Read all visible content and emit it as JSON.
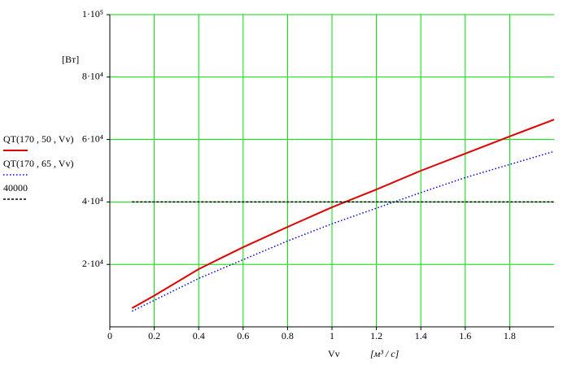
{
  "chart_data": {
    "type": "line",
    "y_label": "[Вт]",
    "x_label": "Vv",
    "x_unit": "[м³ / c]",
    "xlim": [
      0,
      2
    ],
    "xticks": [
      0,
      0.2,
      0.4,
      0.6,
      0.8,
      1,
      1.2,
      1.4,
      1.6,
      1.8
    ],
    "ylim": [
      0,
      100000
    ],
    "yticks": [
      {
        "value": 20000,
        "label": "2·10⁴"
      },
      {
        "value": 40000,
        "label": "4·10⁴"
      },
      {
        "value": 60000,
        "label": "6·10⁴"
      },
      {
        "value": 80000,
        "label": "8·10⁴"
      },
      {
        "value": 100000,
        "label": "1·10⁵"
      }
    ],
    "grid": true,
    "grid_color": "#00dd00",
    "series": [
      {
        "name": "QT(170 , 50 , Vv)",
        "color": "#e00000",
        "dash": "solid",
        "x": [
          0.1,
          0.2,
          0.4,
          0.6,
          0.8,
          1.0,
          1.2,
          1.4,
          1.6,
          1.8,
          2.0
        ],
        "values": [
          6000,
          10000,
          18500,
          25500,
          32000,
          38300,
          44000,
          50000,
          55500,
          61000,
          66400
        ]
      },
      {
        "name": "QT(170 , 65 , Vv)",
        "color": "#0000dd",
        "dash": "dotted",
        "x": [
          0.1,
          0.2,
          0.4,
          0.6,
          0.8,
          1.0,
          1.2,
          1.4,
          1.6,
          1.8,
          2.0
        ],
        "values": [
          5000,
          8500,
          15500,
          21500,
          27500,
          33000,
          38000,
          43000,
          47800,
          52000,
          56200
        ]
      },
      {
        "name": "40000",
        "color": "#000000",
        "dash": "dashed",
        "x": [
          0.1,
          2.0
        ],
        "values": [
          40000,
          40000
        ]
      }
    ]
  }
}
